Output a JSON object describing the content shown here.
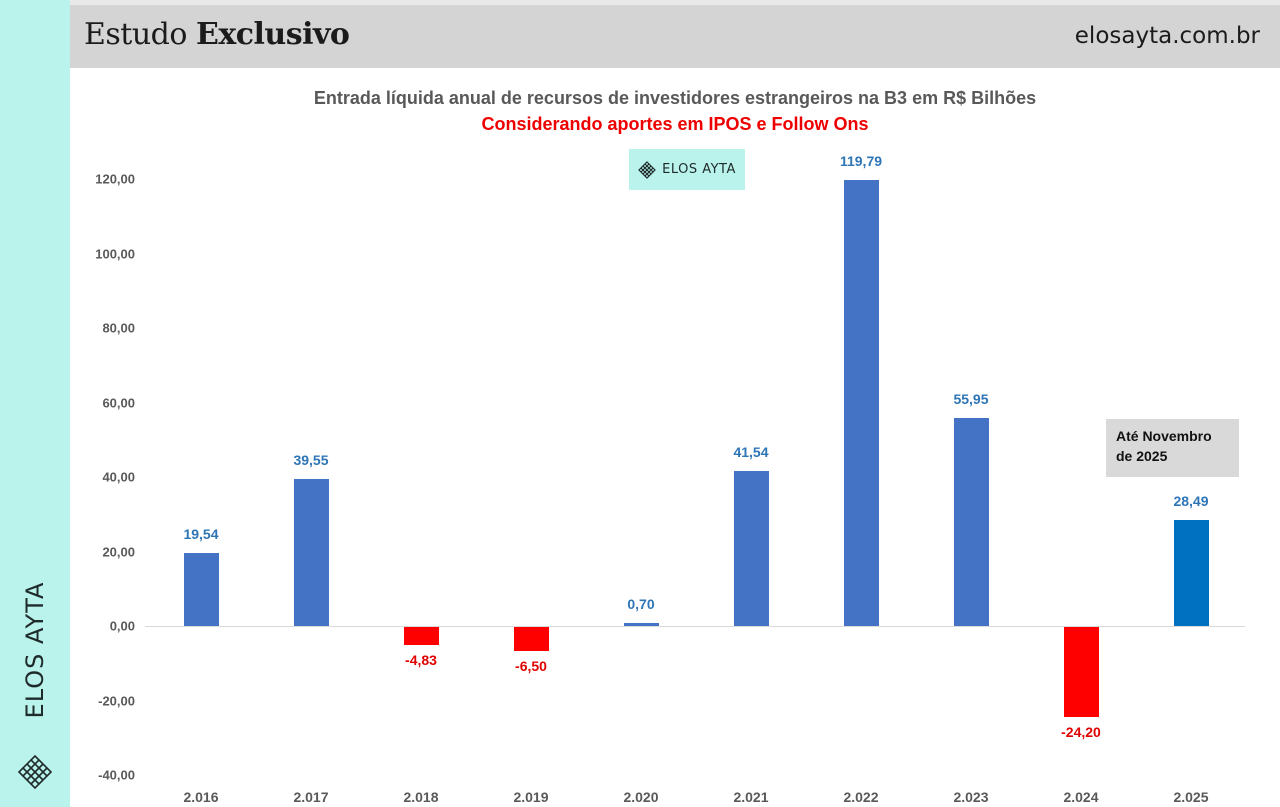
{
  "header": {
    "title_regular": "Estudo",
    "title_bold": "Exclusivo",
    "url": "elosayta.com.br"
  },
  "sidebar": {
    "brand": "ELOS AYTA",
    "logo_icon": "lattice-diamond-logo-icon"
  },
  "watermark": {
    "brand": "ELOS AYTA",
    "logo_icon": "lattice-diamond-logo-icon"
  },
  "annotation": {
    "line1": "Até Novembro",
    "line2": "de 2025"
  },
  "colors": {
    "positive": "#4472C4",
    "positive_partial_year": "#0070C0",
    "negative": "#FF0000",
    "positive_label": "#2E75B6",
    "negative_label": "#E00000",
    "sidebar": "#B9F3EB",
    "header": "#D4D4D4",
    "subtitle": "#EE0000"
  },
  "chart_data": {
    "type": "bar",
    "title": "Entrada líquida anual de recursos de investidores estrangeiros na B3 em R$ Bilhões",
    "subtitle": "Considerando aportes em IPOS e Follow Ons",
    "xlabel": "",
    "ylabel": "",
    "ylim": [
      -40,
      120
    ],
    "yticks": [
      -40,
      -20,
      0,
      20,
      40,
      60,
      80,
      100,
      120
    ],
    "ytick_labels": [
      "-40,00",
      "-20,00",
      "0,00",
      "20,00",
      "40,00",
      "60,00",
      "80,00",
      "100,00",
      "120,00"
    ],
    "grid": false,
    "legend": null,
    "categories": [
      "2.016",
      "2.017",
      "2.018",
      "2.019",
      "2.020",
      "2.021",
      "2.022",
      "2.023",
      "2.024",
      "2.025"
    ],
    "values": [
      19.54,
      39.55,
      -4.83,
      -6.5,
      0.7,
      41.54,
      119.79,
      55.95,
      -24.2,
      28.49
    ],
    "value_labels": [
      "19,54",
      "39,55",
      "-4,83",
      "-6,50",
      "0,70",
      "41,54",
      "119,79",
      "55,95",
      "-24,20",
      "28,49"
    ],
    "annotations": [
      {
        "text": "Até Novembro de 2025",
        "target": "2.025"
      }
    ]
  }
}
